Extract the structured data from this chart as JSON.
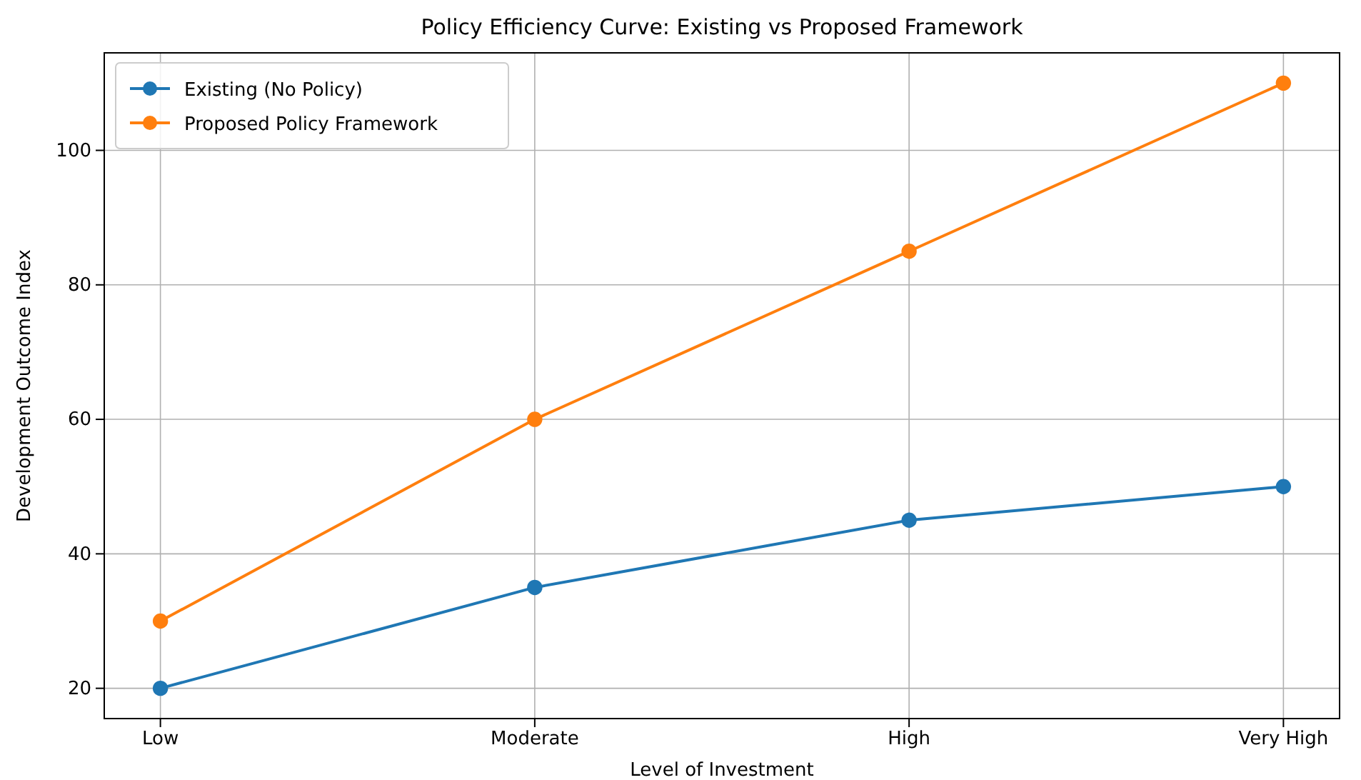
{
  "chart_data": {
    "type": "line",
    "title": "Policy Efficiency Curve: Existing vs Proposed Framework",
    "xlabel": "Level of Investment",
    "ylabel": "Development Outcome Index",
    "categories": [
      "Low",
      "Moderate",
      "High",
      "Very High"
    ],
    "series": [
      {
        "name": "Existing (No Policy)",
        "color": "#1f77b4",
        "values": [
          20,
          35,
          45,
          50
        ]
      },
      {
        "name": "Proposed Policy Framework",
        "color": "#ff7f0e",
        "values": [
          30,
          60,
          85,
          110
        ]
      }
    ],
    "ylim": [
      15.5,
      114.5
    ],
    "yticks": [
      20,
      40,
      60,
      80,
      100
    ],
    "grid": true,
    "legend": "top left",
    "marker": "circle",
    "line_style": "solid"
  }
}
